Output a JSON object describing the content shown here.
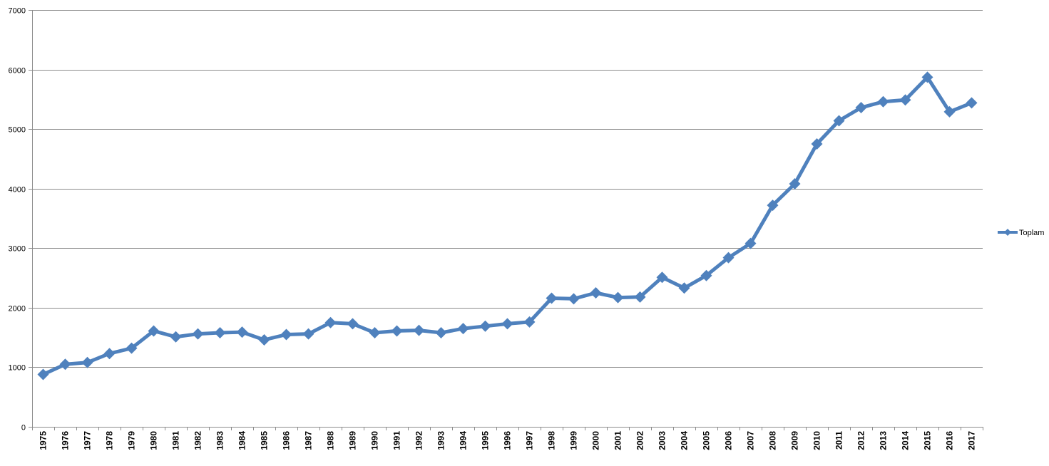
{
  "chart_data": {
    "type": "line",
    "title": "",
    "xlabel": "",
    "ylabel": "",
    "ylim": [
      0,
      7000
    ],
    "yticks": [
      0,
      1000,
      2000,
      3000,
      4000,
      5000,
      6000,
      7000
    ],
    "grid": true,
    "legend_position": "right",
    "colors": {
      "series": "#4F81BD",
      "grid": "#8c8c8c",
      "axis": "#8c8c8c"
    },
    "categories": [
      "1975",
      "1976",
      "1977",
      "1978",
      "1979",
      "1980",
      "1981",
      "1982",
      "1983",
      "1984",
      "1985",
      "1986",
      "1987",
      "1988",
      "1989",
      "1990",
      "1991",
      "1992",
      "1993",
      "1994",
      "1995",
      "1996",
      "1997",
      "1998",
      "1999",
      "2000",
      "2001",
      "2002",
      "2003",
      "2004",
      "2005",
      "2006",
      "2007",
      "2008",
      "2009",
      "2010",
      "2011",
      "2012",
      "2013",
      "2014",
      "2015",
      "2016",
      "2017"
    ],
    "series": [
      {
        "name": "Toplam",
        "marker": "diamond",
        "values": [
          880,
          1050,
          1080,
          1230,
          1320,
          1610,
          1510,
          1560,
          1580,
          1590,
          1460,
          1550,
          1560,
          1750,
          1730,
          1580,
          1610,
          1620,
          1580,
          1650,
          1690,
          1730,
          1760,
          2160,
          2150,
          2250,
          2170,
          2180,
          2510,
          2330,
          2540,
          2840,
          3080,
          3720,
          4080,
          4750,
          5140,
          5360,
          5460,
          5490,
          5870,
          5290,
          5440
        ]
      }
    ]
  }
}
